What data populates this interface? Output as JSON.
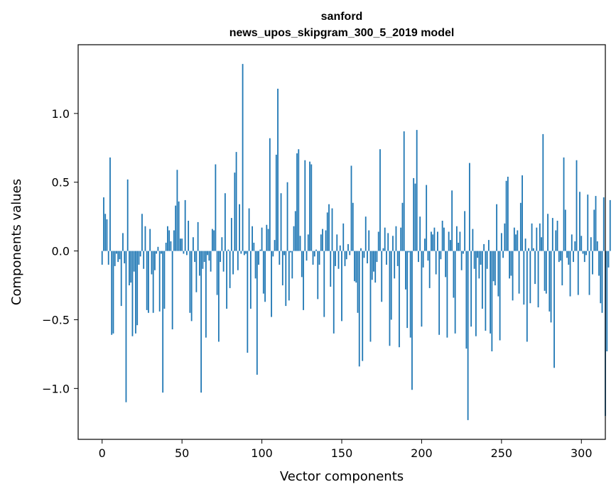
{
  "chart_data": {
    "type": "bar",
    "title_line1": "sanford",
    "title_line2": "news_upos_skipgram_300_5_2019 model",
    "xlabel": "Vector components",
    "ylabel": "Components values",
    "xlim": [
      -15,
      315
    ],
    "ylim": [
      -1.37,
      1.5
    ],
    "xticks": [
      0,
      50,
      100,
      150,
      200,
      250,
      300
    ],
    "xtick_labels": [
      "0",
      "50",
      "100",
      "150",
      "200",
      "250",
      "300"
    ],
    "yticks": [
      -1.0,
      -0.5,
      0.0,
      0.5,
      1.0
    ],
    "ytick_labels": [
      "−1.0",
      "−0.5",
      "0.0",
      "0.5",
      "1.0"
    ],
    "bar_color": "#1f77b4",
    "values": [
      -0.1,
      0.39,
      0.27,
      0.23,
      -0.1,
      0.68,
      -0.61,
      -0.6,
      -0.11,
      -0.02,
      -0.08,
      -0.06,
      -0.4,
      0.13,
      -0.09,
      -1.1,
      0.52,
      -0.25,
      -0.23,
      -0.62,
      -0.15,
      -0.6,
      -0.54,
      -0.1,
      -0.04,
      0.27,
      -0.13,
      0.18,
      -0.43,
      -0.45,
      0.16,
      -0.17,
      -0.45,
      -0.14,
      -0.02,
      0.03,
      -0.44,
      -0.02,
      -1.03,
      -0.42,
      0.06,
      0.18,
      0.15,
      0.07,
      -0.57,
      0.15,
      0.33,
      0.59,
      0.36,
      0.09,
      0.09,
      -0.02,
      0.37,
      -0.03,
      0.22,
      -0.45,
      -0.51,
      0.1,
      -0.08,
      -0.3,
      0.21,
      -0.18,
      -1.03,
      -0.13,
      -0.08,
      -0.63,
      -0.03,
      -0.07,
      -0.15,
      0.16,
      0.15,
      0.63,
      -0.32,
      -0.66,
      -0.08,
      0.1,
      -0.15,
      0.42,
      -0.42,
      0.01,
      -0.27,
      0.24,
      -0.17,
      0.57,
      0.72,
      -0.14,
      0.34,
      -0.02,
      1.36,
      -0.03,
      -0.02,
      -0.74,
      0.31,
      -0.42,
      0.18,
      0.06,
      -0.2,
      -0.9,
      -0.1,
      0.01,
      0.17,
      -0.31,
      -0.37,
      0.19,
      0.16,
      0.82,
      -0.48,
      -0.04,
      0.08,
      0.7,
      1.18,
      -0.1,
      0.42,
      -0.25,
      -0.03,
      -0.4,
      0.5,
      -0.36,
      -0.01,
      -0.2,
      0.18,
      0.29,
      0.71,
      0.74,
      0.11,
      -0.19,
      -0.43,
      0.66,
      -0.07,
      0.12,
      0.65,
      0.63,
      -0.1,
      -0.04,
      0.01,
      -0.35,
      -0.1,
      0.12,
      0.16,
      -0.48,
      0.15,
      0.28,
      0.34,
      -0.26,
      0.31,
      -0.6,
      -0.11,
      0.12,
      -0.13,
      0.04,
      -0.51,
      0.2,
      -0.11,
      -0.06,
      0.05,
      -0.03,
      0.62,
      0.35,
      -0.22,
      -0.23,
      -0.45,
      -0.84,
      0.02,
      -0.8,
      -0.05,
      0.25,
      -0.09,
      0.15,
      -0.66,
      -0.21,
      -0.15,
      -0.23,
      -0.08,
      0.14,
      0.74,
      -0.37,
      0.02,
      0.17,
      -0.1,
      0.13,
      -0.69,
      -0.5,
      0.11,
      -0.2,
      0.18,
      -0.11,
      -0.7,
      0.17,
      0.35,
      0.87,
      -0.28,
      -0.56,
      -0.01,
      -0.63,
      -1.01,
      0.53,
      0.49,
      0.88,
      -0.08,
      0.25,
      -0.55,
      -0.12,
      0.09,
      0.48,
      -0.07,
      -0.27,
      0.14,
      0.12,
      0.17,
      -0.17,
      0.14,
      -0.61,
      -0.06,
      0.22,
      0.17,
      -0.19,
      -0.63,
      0.14,
      0.08,
      0.44,
      -0.34,
      -0.6,
      0.18,
      0.06,
      0.14,
      -0.14,
      -0.02,
      0.29,
      -0.71,
      -1.23,
      0.64,
      -0.55,
      0.16,
      -0.13,
      -0.62,
      -0.05,
      -0.2,
      -0.1,
      -0.42,
      0.05,
      -0.58,
      -0.13,
      0.08,
      -0.6,
      -0.73,
      -0.22,
      -0.25,
      0.34,
      -0.33,
      -0.65,
      0.13,
      -0.05,
      0.2,
      0.51,
      0.54,
      -0.2,
      -0.18,
      -0.36,
      0.17,
      0.12,
      0.15,
      -0.31,
      0.35,
      0.55,
      -0.39,
      0.09,
      -0.66,
      0.02,
      -0.38,
      0.2,
      0.02,
      -0.24,
      0.17,
      -0.41,
      0.2,
      0.1,
      0.85,
      -0.29,
      -0.31,
      0.27,
      -0.44,
      -0.52,
      0.24,
      -0.85,
      0.15,
      0.22,
      -0.08,
      -0.07,
      -0.25,
      0.68,
      0.3,
      -0.05,
      -0.1,
      -0.33,
      0.12,
      -0.08,
      0.07,
      0.66,
      -0.32,
      0.43,
      0.11,
      -0.02,
      -0.08,
      -0.03,
      0.41,
      -0.32,
      0.1,
      -0.17,
      0.3,
      0.4,
      0.07,
      -0.18,
      -0.38,
      -0.45,
      0.39,
      -1.2,
      -0.73,
      -0.12,
      0.37
    ]
  }
}
